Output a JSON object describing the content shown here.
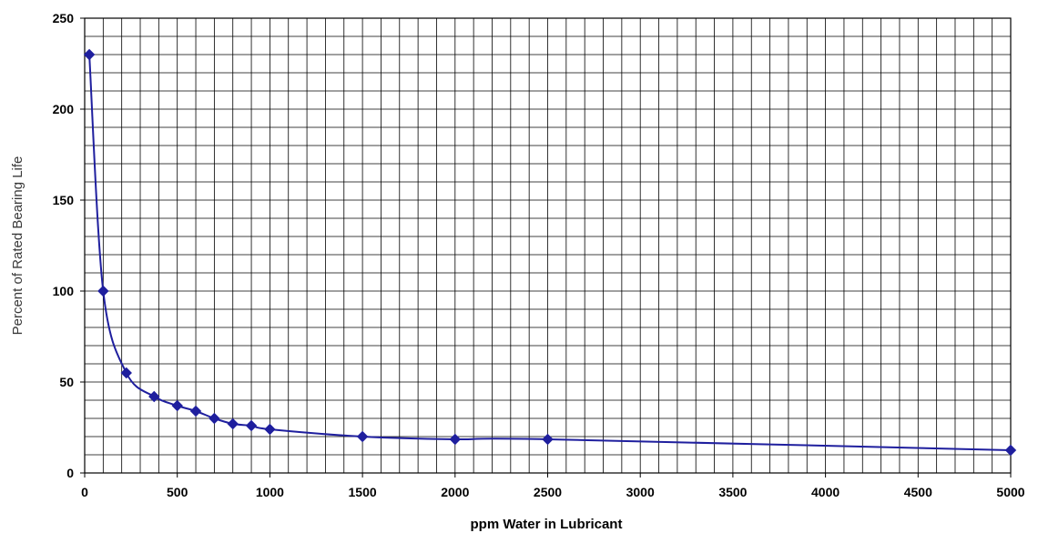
{
  "chart_data": {
    "type": "line",
    "title": "",
    "xlabel": "ppm Water in Lubricant",
    "ylabel": "Percent of Rated Bearing Life",
    "xlim": [
      0,
      5000
    ],
    "ylim": [
      0,
      250
    ],
    "x_ticks": [
      "0",
      "500",
      "1000",
      "1500",
      "2000",
      "2500",
      "3000",
      "3500",
      "4000",
      "4500",
      "5000"
    ],
    "y_ticks": [
      "0",
      "50",
      "100",
      "150",
      "200",
      "250"
    ],
    "x_tick_values": [
      0,
      500,
      1000,
      1500,
      2000,
      2500,
      3000,
      3500,
      4000,
      4500,
      5000
    ],
    "y_tick_values": [
      0,
      50,
      100,
      150,
      200,
      250
    ],
    "grid": true,
    "minor_grid": {
      "x_step": 100,
      "y_step": 10
    },
    "legend": "none",
    "smooth": true,
    "marker": "diamond",
    "series": [
      {
        "color": "#1f1f9e",
        "points": [
          {
            "x": 25,
            "y": 230
          },
          {
            "x": 100,
            "y": 100
          },
          {
            "x": 225,
            "y": 55
          },
          {
            "x": 375,
            "y": 42
          },
          {
            "x": 500,
            "y": 37
          },
          {
            "x": 600,
            "y": 34
          },
          {
            "x": 700,
            "y": 30
          },
          {
            "x": 800,
            "y": 27
          },
          {
            "x": 900,
            "y": 26
          },
          {
            "x": 1000,
            "y": 24
          },
          {
            "x": 1500,
            "y": 20
          },
          {
            "x": 2000,
            "y": 18.5
          },
          {
            "x": 2500,
            "y": 18.5
          },
          {
            "x": 5000,
            "y": 12.5
          }
        ]
      }
    ]
  }
}
